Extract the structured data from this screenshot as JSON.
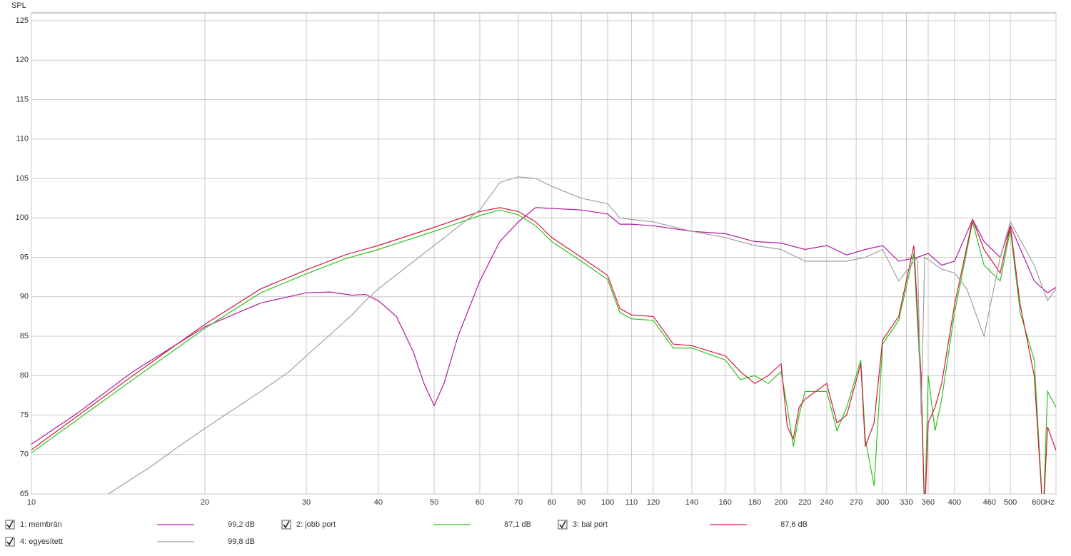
{
  "chart_data": {
    "type": "line",
    "ylabel": "SPL",
    "xscale": "log",
    "xlim": [
      10,
      600
    ],
    "ylim": [
      65,
      126
    ],
    "grid": true,
    "xticks": [
      10,
      20,
      30,
      40,
      50,
      60,
      70,
      80,
      90,
      100,
      110,
      120,
      140,
      160,
      180,
      200,
      220,
      240,
      270,
      300,
      330,
      360,
      400,
      460,
      500,
      {
        "value": 600,
        "label": "600Hz"
      }
    ],
    "yticks": [
      65,
      70,
      75,
      80,
      85,
      90,
      95,
      100,
      105,
      110,
      115,
      120,
      125
    ],
    "series": [
      {
        "name": "1: membrán",
        "color": "#b0189e",
        "readout": "99,2 dB",
        "x": [
          10,
          12,
          15,
          20,
          25,
          30,
          33,
          36,
          38,
          40,
          43,
          46,
          48,
          50,
          52,
          55,
          60,
          65,
          70,
          75,
          80,
          90,
          100,
          105,
          110,
          120,
          140,
          160,
          180,
          200,
          220,
          240,
          260,
          280,
          300,
          320,
          345,
          360,
          380,
          400,
          430,
          450,
          480,
          500,
          550,
          580,
          600
        ],
        "values": [
          71.3,
          75.2,
          80.5,
          86.2,
          89.2,
          90.5,
          90.6,
          90.2,
          90.3,
          89.5,
          87.5,
          83,
          79,
          76.2,
          79,
          85,
          92,
          97,
          99.5,
          101.3,
          101.2,
          101,
          100.5,
          99.2,
          99.2,
          99,
          98.3,
          98,
          97,
          96.8,
          96,
          96.5,
          95.3,
          96,
          96.5,
          94.5,
          95,
          95.5,
          94,
          94.5,
          99.8,
          97,
          95,
          99,
          92,
          90.5,
          91.2
        ]
      },
      {
        "name": "2: jobb port",
        "color": "#2fc21c",
        "readout": "87,1 dB",
        "x": [
          10,
          15,
          20,
          25,
          30,
          35,
          40,
          50,
          60,
          65,
          70,
          75,
          80,
          90,
          100,
          105,
          110,
          120,
          130,
          140,
          160,
          170,
          180,
          190,
          200,
          205,
          210,
          215,
          220,
          240,
          250,
          260,
          275,
          280,
          290,
          300,
          320,
          340,
          350,
          355,
          360,
          370,
          380,
          400,
          430,
          450,
          480,
          500,
          520,
          550,
          570,
          580,
          600
        ],
        "values": [
          70.2,
          79.5,
          86,
          90.5,
          92.9,
          94.8,
          96,
          98.3,
          100.3,
          101,
          100.4,
          99,
          97,
          94.5,
          92.2,
          88,
          87.2,
          87,
          83.5,
          83.5,
          82,
          79.5,
          80,
          79,
          80.5,
          76,
          71,
          75,
          78,
          78,
          73,
          76,
          82,
          72,
          66,
          84,
          87,
          95.5,
          78,
          62,
          80,
          73,
          77,
          88,
          99.5,
          94,
          92,
          98.5,
          88,
          82,
          62,
          78,
          76
        ]
      },
      {
        "name": "3: bal port",
        "color": "#d01a3c",
        "readout": "87,6 dB",
        "x": [
          10,
          15,
          20,
          25,
          30,
          35,
          40,
          50,
          60,
          65,
          70,
          75,
          80,
          90,
          100,
          105,
          110,
          120,
          130,
          140,
          160,
          170,
          180,
          190,
          200,
          205,
          210,
          215,
          220,
          240,
          250,
          260,
          275,
          280,
          290,
          300,
          320,
          340,
          350,
          355,
          360,
          370,
          380,
          400,
          430,
          450,
          480,
          500,
          520,
          550,
          570,
          580,
          600
        ],
        "values": [
          70.6,
          80,
          86.5,
          91,
          93.4,
          95.3,
          96.5,
          98.8,
          100.8,
          101.3,
          100.8,
          99.5,
          97.5,
          95,
          92.7,
          88.5,
          87.7,
          87.5,
          84,
          83.8,
          82.5,
          80.5,
          79,
          80,
          81.5,
          73.5,
          72,
          76,
          77,
          79,
          74,
          75,
          81.5,
          71,
          74,
          84.5,
          87.5,
          96.5,
          80,
          62,
          74,
          76,
          79,
          89,
          99.8,
          96,
          93,
          99,
          89,
          80,
          62,
          73.5,
          70.5
        ]
      },
      {
        "name": "4: egyesített",
        "color": "#a0a0a0",
        "readout": "99,8 dB",
        "x": [
          13.6,
          15,
          16,
          18,
          20,
          25,
          28,
          30,
          33,
          36,
          38,
          40,
          50,
          60,
          65,
          70,
          75,
          80,
          90,
          100,
          105,
          110,
          120,
          140,
          160,
          180,
          200,
          220,
          240,
          260,
          280,
          300,
          320,
          345,
          350,
          355,
          380,
          400,
          420,
          450,
          480,
          500,
          550,
          580,
          600
        ],
        "values": [
          65,
          67,
          68.3,
          71,
          73.3,
          78,
          80.5,
          82.5,
          85.2,
          87.7,
          89.5,
          91,
          96.5,
          101,
          104.5,
          105.2,
          105,
          104,
          102.5,
          101.8,
          100,
          99.8,
          99.5,
          98.3,
          97.5,
          96.5,
          96,
          94.5,
          94.5,
          94.5,
          95,
          96,
          92,
          95,
          75,
          95,
          93.5,
          93,
          91,
          85,
          95,
          99.5,
          94,
          89.5,
          91
        ]
      }
    ]
  }
}
